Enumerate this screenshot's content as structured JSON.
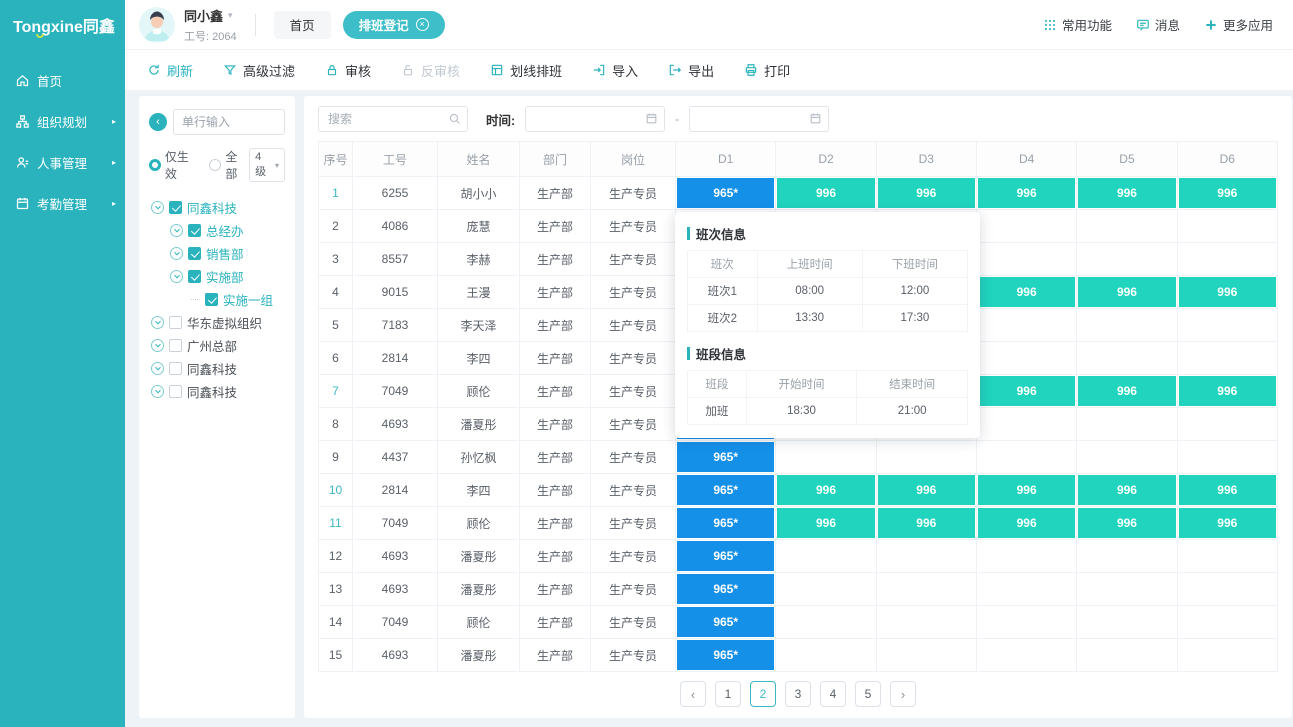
{
  "brand": {
    "logo_text": "Tongxine同鑫"
  },
  "sidebar": {
    "items": [
      {
        "key": "home",
        "icon": "home-icon",
        "label": "首页",
        "has_submenu": false
      },
      {
        "key": "org-planning",
        "icon": "org-icon",
        "label": "组织规划",
        "has_submenu": true
      },
      {
        "key": "hr-management",
        "icon": "people-icon",
        "label": "人事管理",
        "has_submenu": true
      },
      {
        "key": "attendance-management",
        "icon": "calendar-icon",
        "label": "考勤管理",
        "has_submenu": true
      }
    ]
  },
  "header": {
    "user": {
      "name": "同小鑫",
      "emp_label": "工号:",
      "emp_no": "2064"
    },
    "tabs": [
      {
        "key": "home",
        "label": "首页",
        "active": false,
        "closable": false
      },
      {
        "key": "schedule-register",
        "label": "排班登记",
        "active": true,
        "closable": true
      }
    ],
    "actions": [
      {
        "key": "common-functions",
        "icon": "grid-icon",
        "label": "常用功能"
      },
      {
        "key": "message",
        "icon": "message-icon",
        "label": "消息"
      },
      {
        "key": "more-apps",
        "icon": "apps-plus-icon",
        "label": "更多应用"
      }
    ]
  },
  "toolbar": {
    "items": [
      {
        "key": "refresh",
        "icon": "refresh-icon",
        "label": "刷新",
        "state": "primary"
      },
      {
        "key": "advanced-filter",
        "icon": "filter-icon",
        "label": "高级过滤",
        "state": "normal"
      },
      {
        "key": "approve",
        "icon": "lock-icon",
        "label": "审核",
        "state": "normal"
      },
      {
        "key": "reverse-approve",
        "icon": "unlock-icon",
        "label": "反审核",
        "state": "disabled"
      },
      {
        "key": "line-schedule",
        "icon": "schedule-icon",
        "label": "划线排班",
        "state": "normal"
      },
      {
        "key": "import",
        "icon": "import-icon",
        "label": "导入",
        "state": "normal"
      },
      {
        "key": "export",
        "icon": "export-icon",
        "label": "导出",
        "state": "normal"
      },
      {
        "key": "print",
        "icon": "print-icon",
        "label": "打印",
        "state": "normal"
      }
    ]
  },
  "tree_panel": {
    "search_placeholder": "单行输入",
    "radios": [
      {
        "label": "仅生效",
        "checked": true
      },
      {
        "label": "全部",
        "checked": false
      }
    ],
    "level_select": "4级",
    "nodes": [
      {
        "label": "同鑫科技",
        "level": 0,
        "checked": true,
        "expander": true
      },
      {
        "label": "总经办",
        "level": 1,
        "checked": true,
        "expander": true
      },
      {
        "label": "销售部",
        "level": 1,
        "checked": true,
        "expander": true
      },
      {
        "label": "实施部",
        "level": 1,
        "checked": true,
        "expander": true
      },
      {
        "label": "实施一组",
        "level": 2,
        "checked": true,
        "expander": false
      },
      {
        "label": "华东虚拟组织",
        "level": 0,
        "checked": false,
        "expander": true
      },
      {
        "label": "广州总部",
        "level": 0,
        "checked": false,
        "expander": true
      },
      {
        "label": "同鑫科技",
        "level": 0,
        "checked": false,
        "expander": true
      },
      {
        "label": "同鑫科技",
        "level": 0,
        "checked": false,
        "expander": true
      }
    ]
  },
  "grid": {
    "search_placeholder": "搜索",
    "time_label": "时间:",
    "date_separator": "-",
    "date_start_value": "",
    "date_end_value": "",
    "columns": [
      {
        "key": "index",
        "label": "序号"
      },
      {
        "key": "emp-no",
        "label": "工号"
      },
      {
        "key": "name",
        "label": "姓名"
      },
      {
        "key": "dept",
        "label": "部门"
      },
      {
        "key": "post",
        "label": "岗位"
      },
      {
        "key": "d1",
        "label": "D1"
      },
      {
        "key": "d2",
        "label": "D2"
      },
      {
        "key": "d3",
        "label": "D3"
      },
      {
        "key": "d4",
        "label": "D4"
      },
      {
        "key": "d5",
        "label": "D5"
      },
      {
        "key": "d6",
        "label": "D6"
      }
    ],
    "rows": [
      {
        "idx": "1",
        "emp_no": "6255",
        "name": "胡小小",
        "dept": "生产部",
        "post": "生产专员",
        "idx_highlight": true,
        "shifts": {
          "d1": "965*",
          "d2": "996",
          "d3": "996",
          "d4": "996",
          "d5": "996",
          "d6": "996"
        }
      },
      {
        "idx": "2",
        "emp_no": "4086",
        "name": "庞慧",
        "dept": "生产部",
        "post": "生产专员",
        "idx_highlight": false,
        "shifts": {}
      },
      {
        "idx": "3",
        "emp_no": "8557",
        "name": "李赫",
        "dept": "生产部",
        "post": "生产专员",
        "idx_highlight": false,
        "shifts": {}
      },
      {
        "idx": "4",
        "emp_no": "9015",
        "name": "王漫",
        "dept": "生产部",
        "post": "生产专员",
        "idx_highlight": false,
        "shifts": {
          "d1": "965*",
          "d2": "996",
          "d3": "996",
          "d4": "996",
          "d5": "996",
          "d6": "996"
        }
      },
      {
        "idx": "5",
        "emp_no": "7183",
        "name": "李天泽",
        "dept": "生产部",
        "post": "生产专员",
        "idx_highlight": false,
        "shifts": {}
      },
      {
        "idx": "6",
        "emp_no": "2814",
        "name": "李四",
        "dept": "生产部",
        "post": "生产专员",
        "idx_highlight": false,
        "shifts": {}
      },
      {
        "idx": "7",
        "emp_no": "7049",
        "name": "顾伦",
        "dept": "生产部",
        "post": "生产专员",
        "idx_highlight": true,
        "shifts": {
          "d1": "965*",
          "d2": "996",
          "d3": "996",
          "d4": "996",
          "d5": "996",
          "d6": "996"
        }
      },
      {
        "idx": "8",
        "emp_no": "4693",
        "name": "潘夏彤",
        "dept": "生产部",
        "post": "生产专员",
        "idx_highlight": false,
        "shifts": {
          "d1": "965*"
        }
      },
      {
        "idx": "9",
        "emp_no": "4437",
        "name": "孙忆枫",
        "dept": "生产部",
        "post": "生产专员",
        "idx_highlight": false,
        "shifts": {
          "d1": "965*"
        }
      },
      {
        "idx": "10",
        "emp_no": "2814",
        "name": "李四",
        "dept": "生产部",
        "post": "生产专员",
        "idx_highlight": true,
        "shifts": {
          "d1": "965*",
          "d2": "996",
          "d3": "996",
          "d4": "996",
          "d5": "996",
          "d6": "996"
        }
      },
      {
        "idx": "11",
        "emp_no": "7049",
        "name": "顾伦",
        "dept": "生产部",
        "post": "生产专员",
        "idx_highlight": true,
        "shifts": {
          "d1": "965*",
          "d2": "996",
          "d3": "996",
          "d4": "996",
          "d5": "996",
          "d6": "996"
        }
      },
      {
        "idx": "12",
        "emp_no": "4693",
        "name": "潘夏彤",
        "dept": "生产部",
        "post": "生产专员",
        "idx_highlight": false,
        "shifts": {
          "d1": "965*"
        }
      },
      {
        "idx": "13",
        "emp_no": "4693",
        "name": "潘夏彤",
        "dept": "生产部",
        "post": "生产专员",
        "idx_highlight": false,
        "shifts": {
          "d1": "965*"
        }
      },
      {
        "idx": "14",
        "emp_no": "7049",
        "name": "顾伦",
        "dept": "生产部",
        "post": "生产专员",
        "idx_highlight": false,
        "shifts": {
          "d1": "965*"
        }
      },
      {
        "idx": "15",
        "emp_no": "4693",
        "name": "潘夏彤",
        "dept": "生产部",
        "post": "生产专员",
        "idx_highlight": false,
        "shifts": {
          "d1": "965*"
        }
      }
    ]
  },
  "popup": {
    "sections": [
      {
        "title": "班次信息",
        "columns": [
          "班次",
          "上班时间",
          "下班时间"
        ],
        "rows": [
          [
            "班次1",
            "08:00",
            "12:00"
          ],
          [
            "班次2",
            "13:30",
            "17:30"
          ]
        ]
      },
      {
        "title": "班段信息",
        "columns": [
          "班段",
          "开始时间",
          "结束时间"
        ],
        "rows": [
          [
            "加班",
            "18:30",
            "21:00"
          ]
        ]
      }
    ]
  },
  "pagination": {
    "prev_icon": "‹",
    "next_icon": "›",
    "pages": [
      "1",
      "2",
      "3",
      "4",
      "5"
    ],
    "active_page": "2"
  },
  "colors": {
    "primary": "#2ab3bd",
    "tab_active": "#3dbec8",
    "cell_blue": "#1590e9",
    "cell_teal": "#20d4be",
    "index_highlight": "#3bb8c4"
  }
}
